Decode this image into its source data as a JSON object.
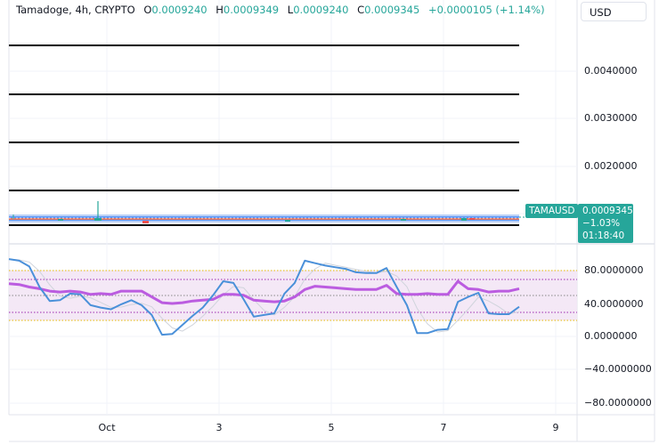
{
  "legend": {
    "symbol": "Tamadoge, 4h, CRYPTO",
    "open_label": "O",
    "open": "0.0009240",
    "high_label": "H",
    "high": "0.0009349",
    "low_label": "L",
    "low": "0.0009240",
    "close_label": "C",
    "close": "0.0009345",
    "change": "+0.0000105 (+1.14%)"
  },
  "currency": "USD",
  "price_axis": {
    "labels": [
      "0.0040000",
      "0.0030000",
      "0.0020000"
    ]
  },
  "price_tag": {
    "symbol": "TAMAUSD",
    "price": "0.0009345",
    "change_pct": "−1.03%",
    "countdown": "01:18:40"
  },
  "rsi_axis": {
    "labels": [
      "80.0000000",
      "40.0000000",
      "0.0000000",
      "−40.0000000",
      "−80.0000000"
    ]
  },
  "time_axis": {
    "labels": [
      "Oct",
      "3",
      "5",
      "7",
      "9"
    ]
  },
  "colors": {
    "up": "#26a69a",
    "down": "#ef5350",
    "rsi_line": "#4a90d9",
    "rsi_ma": "#bb5ce0",
    "band_fill": "#f3e5f5",
    "band_border": "#e6b800"
  },
  "chart_data": {
    "type": "line",
    "title": "Tamadoge, 4h, CRYPTO",
    "x_ticks": [
      "Oct",
      "3",
      "5",
      "7",
      "9"
    ],
    "main_pane": {
      "y_ticks": [
        0.004,
        0.003,
        0.002
      ],
      "horizontal_levels": [
        0.0045,
        0.0035,
        0.0025,
        0.0015,
        0.0008
      ],
      "last_price": 0.0009345
    },
    "rsi_pane": {
      "y_ticks": [
        80,
        40,
        0,
        -40,
        -80
      ],
      "band_upper": 80,
      "band_lower": 20,
      "inner_upper": 73,
      "inner_lower": 27,
      "middle": 50,
      "stoch_k": [
        94,
        92,
        85,
        60,
        43,
        44,
        52,
        51,
        38,
        35,
        33,
        39,
        44,
        38,
        26,
        2,
        3,
        14,
        25,
        35,
        50,
        67,
        65,
        45,
        24,
        26,
        28,
        52,
        65,
        92,
        89,
        86,
        84,
        82,
        78,
        77,
        77,
        83,
        60,
        38,
        4,
        4,
        8,
        9,
        42,
        48,
        53,
        28,
        27,
        27,
        36
      ],
      "stoch_ma": [
        64,
        63,
        60,
        58,
        55,
        54,
        55,
        54,
        51,
        52,
        51,
        55,
        55,
        55,
        48,
        41,
        40,
        41,
        43,
        44,
        45,
        51,
        51,
        50,
        44,
        43,
        42,
        43,
        48,
        57,
        61,
        60,
        59,
        58,
        57,
        57,
        57,
        62,
        52,
        51,
        51,
        52,
        51,
        51,
        67,
        58,
        57,
        54,
        55,
        55,
        58
      ]
    }
  }
}
